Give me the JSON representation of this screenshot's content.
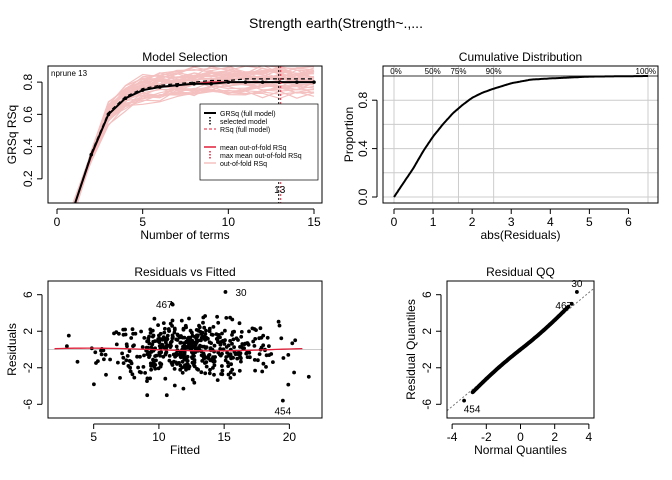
{
  "title": "Strength     earth(Strength~.,...",
  "colors": {
    "pink": "#f4c0c0",
    "red": "#e0203a",
    "black": "#000000",
    "grid": "#cccccc"
  },
  "chart_data": [
    {
      "id": "model-selection",
      "type": "line",
      "title": "Model Selection",
      "xlabel": "Number of terms",
      "ylabel_left": "GRSq",
      "ylabel_right": "RSq",
      "corner_label": "nprune 13",
      "xlim": [
        0,
        15
      ],
      "ylim": [
        0.05,
        0.9
      ],
      "xticks": [
        0,
        5,
        10,
        15
      ],
      "yticks": [
        0.2,
        0.4,
        0.6,
        0.8
      ],
      "x": [
        1,
        2,
        3,
        4,
        5,
        6,
        7,
        8,
        9,
        10,
        11,
        12,
        13,
        14,
        15
      ],
      "series": [
        {
          "name": "GRSq (full model)",
          "values": [
            0.03,
            0.35,
            0.6,
            0.7,
            0.75,
            0.77,
            0.78,
            0.79,
            0.79,
            0.8,
            0.8,
            0.8,
            0.8,
            0.8,
            0.8
          ]
        },
        {
          "name": "RSq (full model)",
          "values": [
            0.03,
            0.36,
            0.61,
            0.71,
            0.76,
            0.78,
            0.79,
            0.8,
            0.81,
            0.81,
            0.82,
            0.82,
            0.82,
            0.82,
            0.82
          ]
        },
        {
          "name": "mean out-of-fold RSq",
          "values": [
            0.03,
            0.34,
            0.6,
            0.7,
            0.75,
            0.77,
            0.78,
            0.79,
            0.8,
            0.8,
            0.8,
            0.8,
            0.8,
            0.8,
            0.8
          ]
        }
      ],
      "selected_model": 13,
      "selected_label": "13",
      "legend": [
        "GRSq (full model)",
        "selected model",
        "RSq (full model)",
        "mean out-of-fold RSq",
        "max mean out-of-fold RSq",
        "out-of-fold RSq"
      ],
      "legend_position": "bottom-right"
    },
    {
      "id": "cumulative-distribution",
      "type": "line",
      "title": "Cumulative Distribution",
      "xlabel": "abs(Residuals)",
      "ylabel": "Proportion",
      "xlim": [
        0,
        6.5
      ],
      "ylim": [
        0,
        1
      ],
      "xticks": [
        0,
        1,
        2,
        3,
        4,
        5,
        6
      ],
      "yticks": [
        0.0,
        0.4,
        0.8
      ],
      "x": [
        0,
        0.25,
        0.5,
        0.75,
        1.0,
        1.25,
        1.5,
        1.75,
        2.0,
        2.25,
        2.5,
        3.0,
        3.5,
        4.0,
        5.0,
        6.5
      ],
      "values": [
        0.0,
        0.12,
        0.24,
        0.38,
        0.5,
        0.6,
        0.69,
        0.76,
        0.82,
        0.86,
        0.89,
        0.94,
        0.97,
        0.98,
        0.995,
        1.0
      ],
      "quantile_labels": [
        "0%",
        "50%",
        "75%",
        "90%",
        "100%"
      ],
      "quantile_values": [
        0.0,
        0.99,
        1.65,
        2.55,
        6.5
      ],
      "grid": true
    },
    {
      "id": "residuals-vs-fitted",
      "type": "scatter",
      "title": "Residuals vs Fitted",
      "xlabel": "Fitted",
      "ylabel": "Residuals",
      "xlim": [
        1.5,
        22.5
      ],
      "ylim": [
        -7.5,
        7.5
      ],
      "xticks": [
        5,
        10,
        15,
        20
      ],
      "yticks": [
        -6,
        -2,
        2,
        6
      ],
      "yticklabels": [
        "-6",
        "-2",
        "2",
        "6"
      ],
      "outliers": [
        {
          "label": "30",
          "x": 15.1,
          "y": 6.3
        },
        {
          "label": "467",
          "x": 11.0,
          "y": 5.0
        },
        {
          "label": "454",
          "x": 19.5,
          "y": -5.6
        }
      ]
    },
    {
      "id": "residual-qq",
      "type": "scatter",
      "title": "Residual QQ",
      "xlabel": "Normal Quantiles",
      "ylabel": "Residual Quantiles",
      "xlim": [
        -4.3,
        4.3
      ],
      "ylim": [
        -7.5,
        7.5
      ],
      "xticks": [
        -4,
        -2,
        0,
        2,
        4
      ],
      "yticks": [
        -6,
        -2,
        2,
        6
      ],
      "yticklabels": [
        "-6",
        "-2",
        "2",
        "6"
      ],
      "outliers": [
        {
          "label": "30",
          "x": 3.3,
          "y": 6.3
        },
        {
          "label": "467",
          "x": 3.0,
          "y": 5.0
        },
        {
          "label": "454",
          "x": -3.3,
          "y": -5.6
        }
      ]
    }
  ]
}
